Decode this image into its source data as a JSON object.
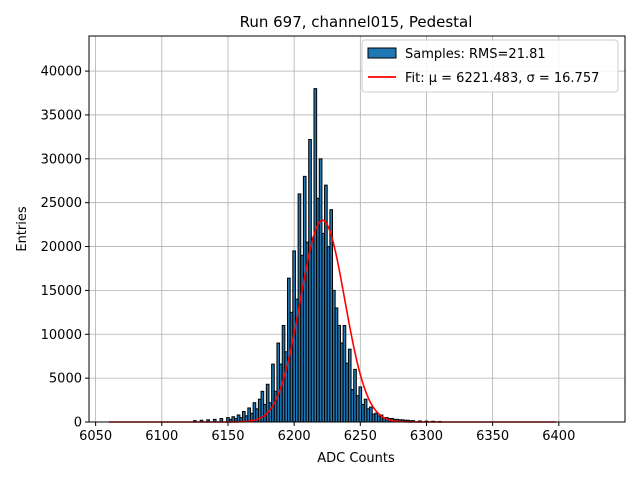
{
  "chart_data": {
    "type": "bar",
    "title": "Run 697, channel015, Pedestal",
    "xlabel": "ADC Counts",
    "ylabel": "Entries",
    "xlim": [
      6045,
      6450
    ],
    "ylim": [
      0,
      44000
    ],
    "xticks": [
      6050,
      6100,
      6150,
      6200,
      6250,
      6300,
      6350,
      6400
    ],
    "yticks": [
      0,
      5000,
      10000,
      15000,
      20000,
      25000,
      30000,
      35000,
      40000
    ],
    "grid": true,
    "legend_position": "top-right",
    "colors": {
      "bars": "#1f77b4",
      "bar_edge": "#000000",
      "fit": "#ff0000"
    },
    "histogram": {
      "name": "Samples: RMS=21.81",
      "x": [
        6125,
        6130,
        6135,
        6140,
        6145,
        6150,
        6152,
        6154,
        6156,
        6158,
        6160,
        6162,
        6164,
        6166,
        6168,
        6170,
        6172,
        6174,
        6176,
        6178,
        6180,
        6182,
        6184,
        6186,
        6188,
        6190,
        6192,
        6194,
        6196,
        6198,
        6200,
        6202,
        6204,
        6206,
        6208,
        6210,
        6212,
        6214,
        6216,
        6218,
        6220,
        6222,
        6224,
        6226,
        6228,
        6230,
        6232,
        6234,
        6236,
        6238,
        6240,
        6242,
        6244,
        6246,
        6248,
        6250,
        6252,
        6254,
        6256,
        6258,
        6260,
        6262,
        6264,
        6266,
        6268,
        6270,
        6272,
        6274,
        6276,
        6278,
        6280,
        6282,
        6284,
        6286,
        6288,
        6290,
        6295,
        6300,
        6305,
        6310
      ],
      "values": [
        150,
        200,
        250,
        300,
        400,
        500,
        300,
        600,
        400,
        800,
        500,
        1200,
        700,
        1600,
        1000,
        2200,
        1500,
        2600,
        3500,
        2000,
        4300,
        2200,
        6600,
        3500,
        9000,
        6600,
        11000,
        8000,
        16400,
        12500,
        19500,
        14000,
        26000,
        19000,
        28000,
        20500,
        32200,
        21000,
        38000,
        25500,
        30000,
        21500,
        27000,
        20000,
        24200,
        15000,
        13000,
        11000,
        9000,
        11000,
        6700,
        8300,
        3700,
        6000,
        3000,
        4000,
        2000,
        2600,
        1500,
        1700,
        900,
        1000,
        700,
        800,
        500,
        500,
        400,
        400,
        300,
        300,
        250,
        250,
        200,
        200,
        150,
        150,
        120,
        100,
        80,
        60
      ]
    },
    "fit": {
      "name": "Fit: μ = 6221.483, σ = 16.757",
      "mu": 6221.483,
      "sigma": 16.757,
      "amplitude": 23000,
      "x_range": [
        6060,
        6398
      ]
    }
  }
}
